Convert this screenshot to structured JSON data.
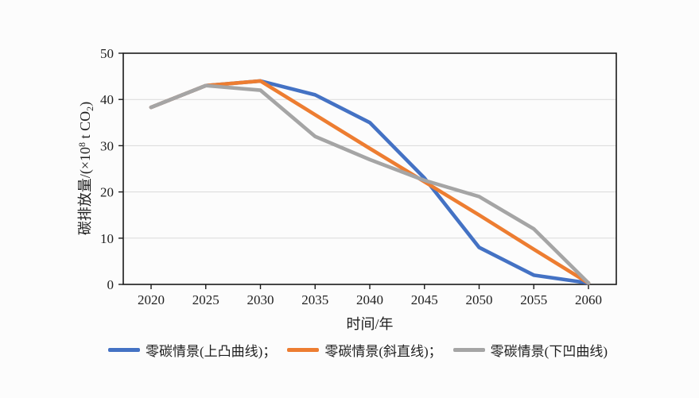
{
  "figure": {
    "background": "#fcfcfc",
    "plot_border_color": "#1a1a1a",
    "gridline_color": "#d9d9d9"
  },
  "chart_data": {
    "type": "line",
    "title": "",
    "x": [
      2020,
      2025,
      2030,
      2035,
      2040,
      2045,
      2050,
      2055,
      2060
    ],
    "series": [
      {
        "name": "零碳情景(上凸曲线)",
        "color": "#4472C4",
        "values": [
          38.3,
          43,
          44,
          41,
          35,
          23,
          8,
          2,
          0.3
        ]
      },
      {
        "name": "零碳情景(斜直线)",
        "color": "#ED7D31",
        "values": [
          38.3,
          43,
          44,
          36.7,
          29.4,
          22.2,
          15,
          7.6,
          0.3
        ]
      },
      {
        "name": "零碳情景(下凹曲线)",
        "color": "#A5A5A5",
        "values": [
          38.3,
          43,
          42,
          32,
          27,
          22.5,
          19,
          12,
          0.3
        ]
      }
    ],
    "xlabel": "时间/年",
    "ylabel": "碳排放量/(×10⁸ t CO₂)",
    "ylabel_parts": {
      "prefix": "碳排放量/(×10",
      "sup": "8",
      "mid": " t CO",
      "sub": "2",
      "suffix": ")"
    },
    "xlim_categories": true,
    "ylim": [
      0,
      50
    ],
    "yticks": [
      0,
      10,
      20,
      30,
      40,
      50
    ],
    "grid": true,
    "legend_position": "bottom",
    "legend": [
      {
        "label": "零碳情景(上凸曲线)；"
      },
      {
        "label": "零碳情景(斜直线)；"
      },
      {
        "label": "零碳情景(下凹曲线)"
      }
    ]
  }
}
